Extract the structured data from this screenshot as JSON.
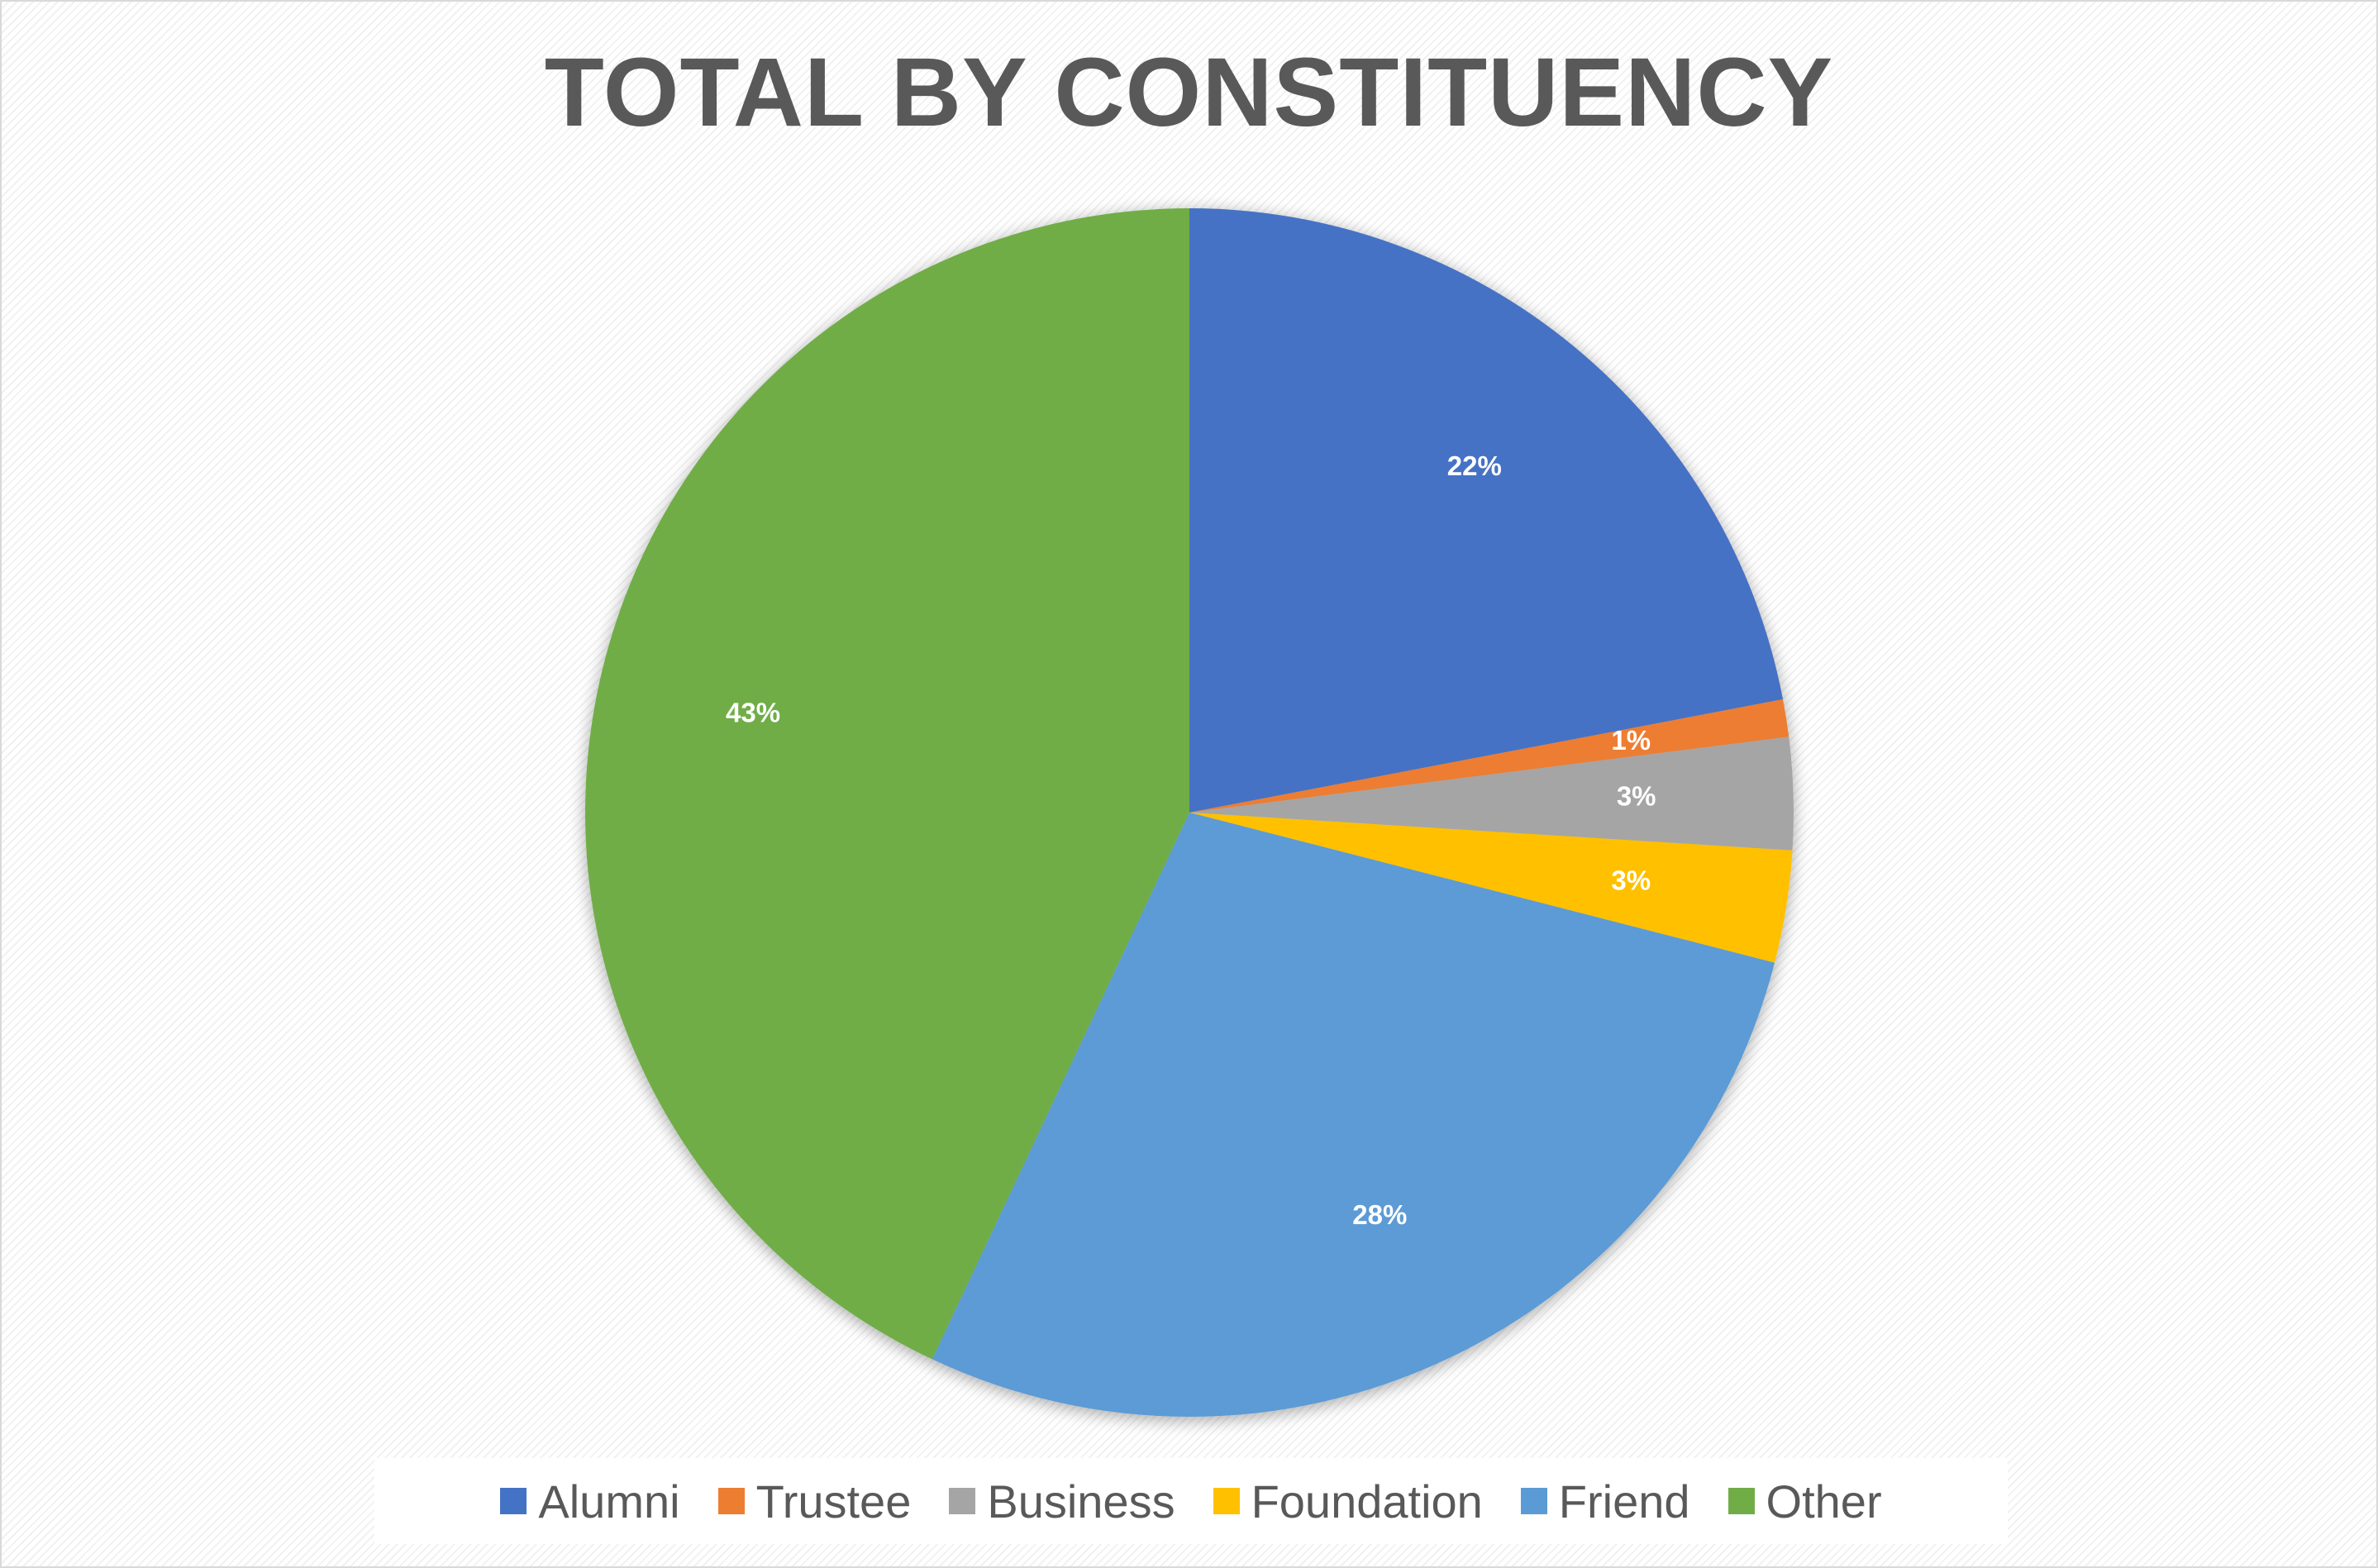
{
  "chart_data": {
    "type": "pie",
    "title": "TOTAL BY CONSTITUENCY",
    "categories": [
      "Alumni",
      "Trustee",
      "Business",
      "Foundation",
      "Friend",
      "Other"
    ],
    "values": [
      22,
      1,
      3,
      3,
      28,
      43
    ],
    "data_labels": [
      "22%",
      "1%",
      "3%",
      "3%",
      "28%",
      "43%"
    ],
    "colors": [
      "#4472C4",
      "#ED7D31",
      "#A5A5A5",
      "#FFC000",
      "#5B9BD5",
      "#70AD47"
    ],
    "legend_position": "bottom",
    "label_color": "#FFFFFF"
  }
}
